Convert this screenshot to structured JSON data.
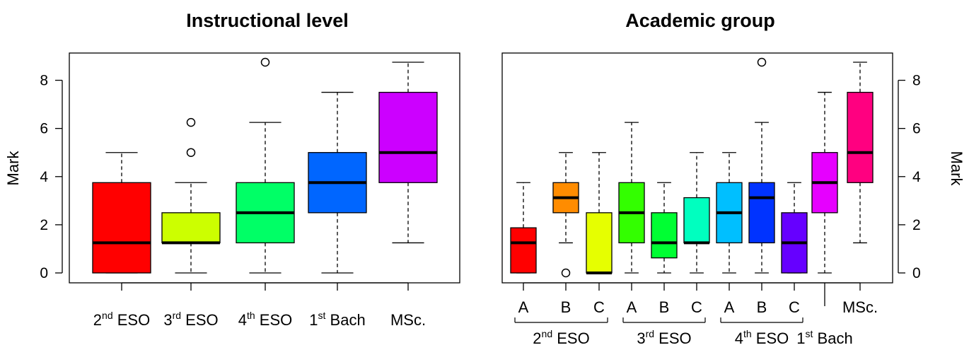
{
  "chart_data": [
    {
      "type": "boxplot",
      "title": "Instructional level",
      "ylabel": "Mark",
      "ylim": [
        0,
        8.75
      ],
      "yticks": [
        "0",
        "2",
        "4",
        "6",
        "8"
      ],
      "ytick_values": [
        0,
        2,
        4,
        6,
        8
      ],
      "y_axis_side": "left",
      "categories": [
        {
          "base": "2",
          "sup": "nd",
          "rest": " ESO"
        },
        {
          "base": "3",
          "sup": "rd",
          "rest": " ESO"
        },
        {
          "base": "4",
          "sup": "th",
          "rest": " ESO"
        },
        {
          "base": "1",
          "sup": "st",
          "rest": " Bach"
        },
        {
          "base": "MSc.",
          "sup": "",
          "rest": ""
        }
      ],
      "boxes": [
        {
          "min": 0,
          "q1": 0,
          "median": 1.25,
          "q3": 3.75,
          "max": 5,
          "outliers": [],
          "color": "#ff0000"
        },
        {
          "min": 0,
          "q1": 1.25,
          "median": 1.25,
          "q3": 2.5,
          "max": 3.75,
          "outliers": [
            5,
            6.25
          ],
          "color": "#ccff00"
        },
        {
          "min": 0,
          "q1": 1.25,
          "median": 2.5,
          "q3": 3.75,
          "max": 6.25,
          "outliers": [
            8.75
          ],
          "color": "#00ff66"
        },
        {
          "min": 0,
          "q1": 2.5,
          "median": 3.75,
          "q3": 5,
          "max": 7.5,
          "outliers": [],
          "color": "#0066ff"
        },
        {
          "min": 1.25,
          "q1": 3.75,
          "median": 5,
          "q3": 7.5,
          "max": 8.75,
          "outliers": [],
          "color": "#cc00ff"
        }
      ]
    },
    {
      "type": "boxplot",
      "title": "Academic group",
      "ylabel": "Mark",
      "ylim": [
        0,
        8.75
      ],
      "yticks": [
        "0",
        "2",
        "4",
        "6",
        "8"
      ],
      "ytick_values": [
        0,
        2,
        4,
        6,
        8
      ],
      "y_axis_side": "right",
      "categories": [
        "A",
        "B",
        "C",
        "A",
        "B",
        "C",
        "A",
        "B",
        "C",
        "",
        "MSc."
      ],
      "groups": [
        {
          "base": "2",
          "sup": "nd",
          "rest": " ESO",
          "from": 0,
          "to": 2
        },
        {
          "base": "3",
          "sup": "rd",
          "rest": " ESO",
          "from": 3,
          "to": 5
        },
        {
          "base": "4",
          "sup": "th",
          "rest": " ESO",
          "from": 6,
          "to": 8
        },
        {
          "base": "1",
          "sup": "st",
          "rest": " Bach",
          "from": 9,
          "to": 9
        }
      ],
      "boxes": [
        {
          "min": 0,
          "q1": 0,
          "median": 1.25,
          "q3": 1.875,
          "max": 3.75,
          "outliers": [],
          "color": "#ff0000"
        },
        {
          "min": 1.25,
          "q1": 2.5,
          "median": 3.125,
          "q3": 3.75,
          "max": 5,
          "outliers": [
            0
          ],
          "color": "#ff8c00"
        },
        {
          "min": 0,
          "q1": 0,
          "median": 0,
          "q3": 2.5,
          "max": 5,
          "outliers": [],
          "color": "#e6ff00"
        },
        {
          "min": 0,
          "q1": 1.25,
          "median": 2.5,
          "q3": 3.75,
          "max": 6.25,
          "outliers": [],
          "color": "#33ff00"
        },
        {
          "min": 0,
          "q1": 0.625,
          "median": 1.25,
          "q3": 2.5,
          "max": 3.75,
          "outliers": [],
          "color": "#00ff33"
        },
        {
          "min": 0,
          "q1": 1.25,
          "median": 1.25,
          "q3": 3.125,
          "max": 5,
          "outliers": [],
          "color": "#00ffbf"
        },
        {
          "min": 0,
          "q1": 1.25,
          "median": 2.5,
          "q3": 3.75,
          "max": 5,
          "outliers": [],
          "color": "#00bfff"
        },
        {
          "min": 0,
          "q1": 1.25,
          "median": 3.125,
          "q3": 3.75,
          "max": 6.25,
          "outliers": [
            8.75
          ],
          "color": "#0033ff"
        },
        {
          "min": 0,
          "q1": 0,
          "median": 1.25,
          "q3": 2.5,
          "max": 3.75,
          "outliers": [],
          "color": "#6600ff"
        },
        {
          "min": 0,
          "q1": 2.5,
          "median": 3.75,
          "q3": 5,
          "max": 7.5,
          "outliers": [],
          "color": "#e600ff"
        },
        {
          "min": 1.25,
          "q1": 3.75,
          "median": 5,
          "q3": 7.5,
          "max": 8.75,
          "outliers": [],
          "color": "#ff0080"
        }
      ]
    }
  ]
}
